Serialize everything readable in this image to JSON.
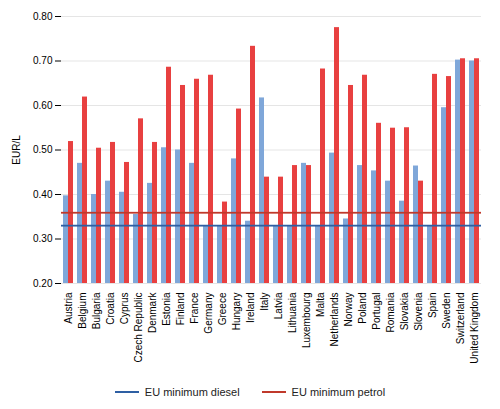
{
  "chart_data": {
    "type": "bar",
    "categories": [
      "Austria",
      "Belgium",
      "Bulgaria",
      "Croatia",
      "Cyprus",
      "Czech Republic",
      "Denmark",
      "Estonia",
      "Finland",
      "France",
      "Germany",
      "Greece",
      "Hungary",
      "Ireland",
      "Italy",
      "Latvia",
      "Lithuania",
      "Luxembourg",
      "Malta",
      "Netherlands",
      "Norway",
      "Poland",
      "Portugal",
      "Romania",
      "Slovakia",
      "Slovenia",
      "Spain",
      "Sweden",
      "Switzerland",
      "United Kingdom"
    ],
    "series": [
      {
        "color": "#7fa7d9",
        "values": [
          0.397,
          0.47,
          0.4,
          0.43,
          0.405,
          0.355,
          0.425,
          0.505,
          0.5,
          0.47,
          0.33,
          0.33,
          0.48,
          0.34,
          0.617,
          0.33,
          0.33,
          0.47,
          0.33,
          0.493,
          0.345,
          0.465,
          0.453,
          0.43,
          0.385,
          0.464,
          0.33,
          0.595,
          0.702,
          0.7
        ]
      },
      {
        "color": "#e84040",
        "values": [
          0.519,
          0.619,
          0.504,
          0.517,
          0.472,
          0.57,
          0.517,
          0.686,
          0.645,
          0.659,
          0.668,
          0.383,
          0.592,
          0.733,
          0.439,
          0.439,
          0.465,
          0.465,
          0.682,
          0.775,
          0.645,
          0.668,
          0.56,
          0.549,
          0.55,
          0.43,
          0.67,
          0.665,
          0.705,
          0.705
        ]
      }
    ],
    "reference_lines": [
      {
        "name": "EU minimum diesel",
        "value": 0.33,
        "color": "#2e5fa3"
      },
      {
        "name": "EU minimum petrol",
        "value": 0.359,
        "color": "#c0392b"
      }
    ],
    "ylabel": "EUR/L",
    "ylim": [
      0.2,
      0.8
    ],
    "yticks": [
      {
        "value": 0.2,
        "label": "0.20"
      },
      {
        "value": 0.3,
        "label": "0.30"
      },
      {
        "value": 0.4,
        "label": "0.40"
      },
      {
        "value": 0.5,
        "label": "0.50"
      },
      {
        "value": 0.6,
        "label": "0.60"
      },
      {
        "value": 0.7,
        "label": "0.70"
      },
      {
        "value": 0.8,
        "label": "0.80"
      }
    ],
    "grid": true,
    "legend": "bottom"
  }
}
